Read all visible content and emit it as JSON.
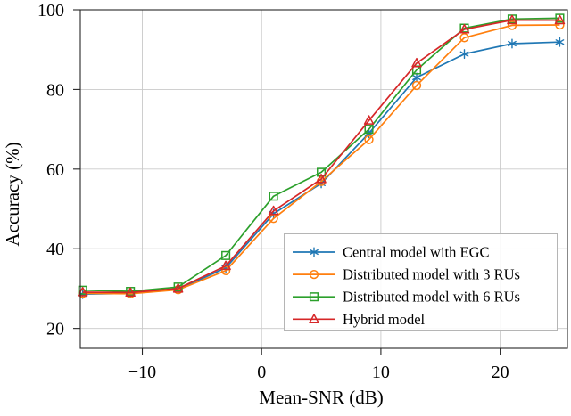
{
  "figure": {
    "kind": "scientific-line-plot",
    "background": "#ffffff",
    "grid_color": "#c9c9c9",
    "spine_color": "#262626",
    "legend_border_color": "#b5b5b5",
    "legend_background": "rgba(255,255,255,0.88)"
  },
  "chart_data": {
    "type": "line",
    "title": "",
    "xlabel": "Mean-SNR (dB)",
    "ylabel": "Accuracy (%)",
    "x": [
      -15,
      -11,
      -7,
      -3,
      1,
      5,
      9,
      13,
      17,
      21,
      25
    ],
    "xlim": [
      -15.2,
      25.64
    ],
    "ylim": [
      15,
      100
    ],
    "xticks": [
      -10,
      0,
      10,
      20
    ],
    "yticks": [
      20,
      40,
      60,
      80,
      100
    ],
    "grid": true,
    "legend_position": "lower-right-inside",
    "series": [
      {
        "name": "Central model with EGC",
        "color": "#1f77b4",
        "marker": "asterisk",
        "values": [
          28.6,
          28.8,
          29.8,
          35.2,
          48.8,
          56.4,
          69.0,
          83.0,
          88.9,
          91.5,
          91.9
        ]
      },
      {
        "name": "Distributed model with 3 RUs",
        "color": "#ff7f0e",
        "marker": "circle",
        "values": [
          28.8,
          28.7,
          29.7,
          34.5,
          47.6,
          56.9,
          67.4,
          81.0,
          93.0,
          96.1,
          96.2
        ]
      },
      {
        "name": "Distributed model with 6 RUs",
        "color": "#2ca02c",
        "marker": "square",
        "values": [
          29.6,
          29.3,
          30.4,
          38.3,
          53.2,
          59.2,
          70.0,
          84.9,
          95.4,
          97.7,
          97.9
        ]
      },
      {
        "name": "Hybrid model",
        "color": "#d62728",
        "marker": "triangle",
        "values": [
          29.1,
          29.0,
          30.0,
          35.7,
          49.5,
          57.5,
          72.2,
          86.6,
          95.1,
          97.4,
          97.4
        ]
      }
    ]
  }
}
